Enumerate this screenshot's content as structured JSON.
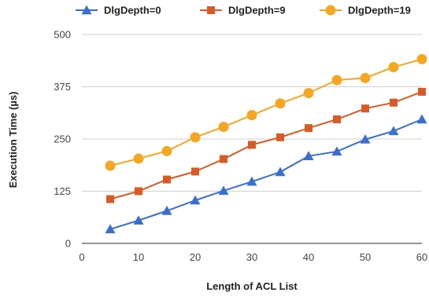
{
  "chart_data": {
    "type": "line",
    "title": "",
    "xlabel": "Length of ACL List",
    "ylabel": "Execution Time (µs)",
    "xlim": [
      0,
      60
    ],
    "ylim": [
      0,
      500
    ],
    "x_ticks": [
      0,
      10,
      20,
      30,
      40,
      50,
      60
    ],
    "y_ticks": [
      0,
      125,
      250,
      375,
      500
    ],
    "grid": "horizontal",
    "legend_position": "top",
    "x": [
      5,
      10,
      15,
      20,
      25,
      30,
      35,
      40,
      45,
      50,
      55,
      60
    ],
    "series": [
      {
        "name": "DlgDepth=0",
        "color": "#3a6fcf",
        "marker": "triangle",
        "values": [
          34,
          55,
          78,
          103,
          126,
          148,
          171,
          209,
          220,
          249,
          269,
          297
        ]
      },
      {
        "name": "DlgDepth=9",
        "color": "#d95a24",
        "marker": "square",
        "values": [
          106,
          125,
          153,
          172,
          202,
          236,
          254,
          276,
          297,
          323,
          337,
          363
        ]
      },
      {
        "name": "DlgDepth=19",
        "color": "#f5a623",
        "marker": "circle",
        "values": [
          186,
          203,
          221,
          254,
          279,
          307,
          335,
          360,
          391,
          396,
          422,
          441
        ]
      }
    ]
  }
}
